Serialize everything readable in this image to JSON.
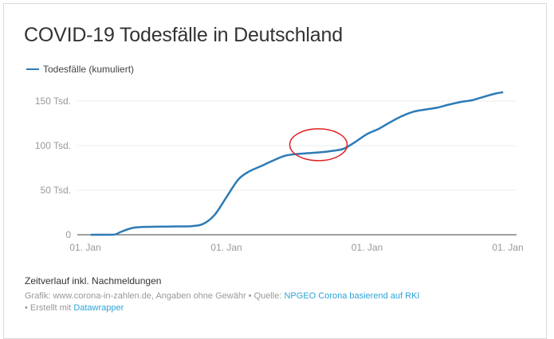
{
  "title": "COVID-19 Todesfälle in Deutschland",
  "notes": "Zeitverlauf inkl. Nachmeldungen",
  "footer": {
    "text1": "Grafik: www.corona-in-zahlen.de, Angaben ohne Gewähr • Quelle: ",
    "source_link": "NPGEO Corona basierend auf RKI",
    "text2": "• Erstellt mit ",
    "tool_link": "Datawrapper"
  },
  "chart_data": {
    "type": "line",
    "title": "COVID-19 Todesfälle in Deutschland",
    "xlabel": "",
    "ylabel": "",
    "ylim": [
      0,
      160000
    ],
    "xlim": [
      "2020-01-01",
      "2023-01-01"
    ],
    "grid": true,
    "legend_position": "top-left",
    "y_ticks": [
      {
        "value": 0,
        "label": "0"
      },
      {
        "value": 50000,
        "label": "50 Tsd."
      },
      {
        "value": 100000,
        "label": "100 Tsd."
      },
      {
        "value": 150000,
        "label": "150 Tsd."
      }
    ],
    "x_ticks": [
      {
        "value": "2020-01-01",
        "label": "01. Jan"
      },
      {
        "value": "2021-01-01",
        "label": "01. Jan"
      },
      {
        "value": "2022-01-01",
        "label": "01. Jan"
      },
      {
        "value": "2023-01-01",
        "label": "01. Jan"
      }
    ],
    "series": [
      {
        "name": "Todesfälle (kumuliert)",
        "color": "#2c7bb6",
        "x": [
          "2020-01-15",
          "2020-03-01",
          "2020-03-20",
          "2020-04-01",
          "2020-05-01",
          "2020-06-01",
          "2020-07-01",
          "2020-08-01",
          "2020-09-01",
          "2020-10-01",
          "2020-11-01",
          "2020-12-01",
          "2021-01-01",
          "2021-02-01",
          "2021-03-01",
          "2021-04-01",
          "2021-05-01",
          "2021-06-01",
          "2021-07-01",
          "2021-08-01",
          "2021-09-01",
          "2021-10-01",
          "2021-11-01",
          "2021-12-01",
          "2022-01-01",
          "2022-02-01",
          "2022-03-01",
          "2022-04-01",
          "2022-05-01",
          "2022-06-01",
          "2022-07-01",
          "2022-08-01",
          "2022-09-01",
          "2022-10-01",
          "2022-11-01",
          "2022-12-01",
          "2022-12-20"
        ],
        "y": [
          0,
          0,
          500,
          3000,
          7500,
          8800,
          9000,
          9200,
          9400,
          9600,
          12000,
          22000,
          42000,
          62000,
          71000,
          77000,
          83000,
          88500,
          90500,
          91500,
          92500,
          94000,
          96500,
          104000,
          113000,
          119000,
          126000,
          133000,
          138000,
          140500,
          142500,
          146000,
          149000,
          151000,
          155000,
          158500,
          160000
        ]
      }
    ],
    "annotation": {
      "type": "ellipse",
      "color": "#e02020",
      "center_x": "2021-09-01",
      "center_y": 101000
    }
  }
}
